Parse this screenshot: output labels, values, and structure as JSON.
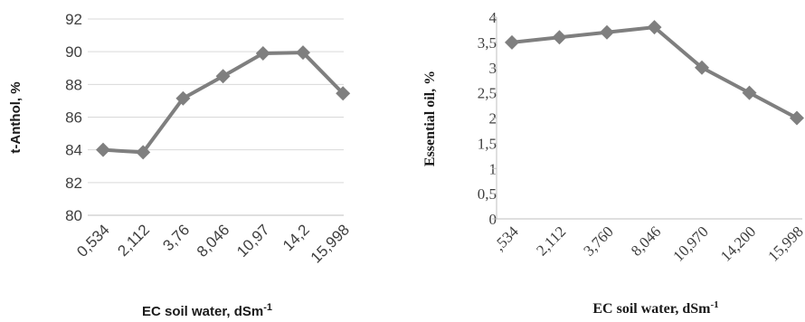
{
  "chart_data": [
    {
      "type": "line",
      "title": "",
      "xlabel": "EC soil water, dSm",
      "xlabel_sup": "-1",
      "ylabel": "t-Anthol, %",
      "categories": [
        "0,534",
        "2,112",
        "3,76",
        "8,046",
        "10,97",
        "14,2",
        "15,998"
      ],
      "series": [
        {
          "values": [
            84.0,
            83.85,
            87.15,
            88.5,
            89.9,
            89.95,
            87.45
          ]
        }
      ],
      "ylim": [
        80,
        92
      ],
      "yticks": [
        "80",
        "82",
        "84",
        "86",
        "88",
        "90",
        "92"
      ],
      "grid": true,
      "legend": "none",
      "colors": {
        "line": "#7f7f7f",
        "marker": "#7f7f7f"
      }
    },
    {
      "type": "line",
      "title": "",
      "xlabel": "EC soil water, dSm",
      "xlabel_sup": "-1",
      "ylabel": "Essential oil, %",
      "categories": [
        ",534",
        "2,112",
        "3,760",
        "8,046",
        "10,970",
        "14,200",
        "15,998"
      ],
      "series": [
        {
          "values": [
            3.5,
            3.6,
            3.7,
            3.8,
            3.0,
            2.5,
            2.0
          ]
        }
      ],
      "ylim": [
        0,
        4
      ],
      "yticks": [
        "0",
        "0,5",
        "1",
        "1,5",
        "2",
        "2,5",
        "3",
        "3,5",
        "4"
      ],
      "grid": false,
      "legend": "none",
      "colors": {
        "line": "#7f7f7f",
        "marker": "#7f7f7f"
      }
    }
  ]
}
